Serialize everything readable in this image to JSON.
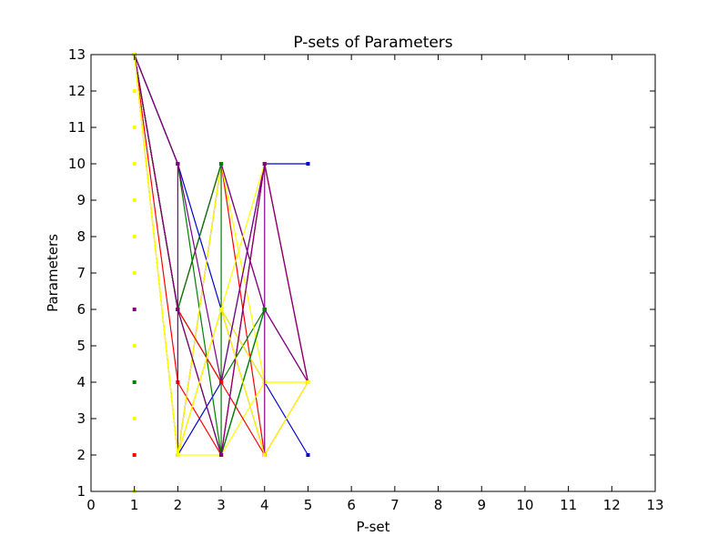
{
  "chart_data": {
    "type": "line",
    "title": "P-sets of Parameters",
    "xlabel": "P-set",
    "ylabel": "Parameters",
    "xlim": [
      0,
      13
    ],
    "ylim": [
      1,
      13
    ],
    "xticks": [
      0,
      1,
      2,
      3,
      4,
      5,
      6,
      7,
      8,
      9,
      10,
      11,
      12,
      13
    ],
    "yticks": [
      1,
      2,
      3,
      4,
      5,
      6,
      7,
      8,
      9,
      10,
      11,
      12,
      13
    ],
    "grid": false,
    "legend": "none",
    "series": [
      {
        "color": "#ff0000",
        "points": [
          [
            1,
            13
          ],
          [
            2,
            6
          ],
          [
            3,
            10
          ],
          [
            4,
            2
          ],
          [
            5,
            4
          ]
        ]
      },
      {
        "color": "#0000cc",
        "points": [
          [
            1,
            13
          ],
          [
            2,
            10
          ],
          [
            3,
            6
          ],
          [
            4,
            4
          ],
          [
            5,
            2
          ]
        ]
      },
      {
        "color": "#800080",
        "points": [
          [
            1,
            13
          ],
          [
            2,
            2
          ],
          [
            3,
            10
          ],
          [
            4,
            6
          ],
          [
            5,
            4
          ]
        ]
      },
      {
        "color": "#008000",
        "points": [
          [
            1,
            13
          ],
          [
            2,
            6
          ],
          [
            3,
            4
          ],
          [
            4,
            6
          ]
        ]
      },
      {
        "color": "#ff0000",
        "points": [
          [
            1,
            13
          ],
          [
            2,
            4
          ],
          [
            3,
            2
          ],
          [
            4,
            10
          ],
          [
            5,
            4
          ]
        ]
      },
      {
        "color": "#ffff00",
        "points": [
          [
            1,
            13
          ],
          [
            2,
            2
          ],
          [
            3,
            6
          ],
          [
            4,
            4
          ],
          [
            5,
            4
          ]
        ]
      },
      {
        "color": "#0000cc",
        "points": [
          [
            1,
            13
          ],
          [
            2,
            2
          ],
          [
            3,
            4
          ],
          [
            4,
            10
          ],
          [
            5,
            10
          ]
        ]
      },
      {
        "color": "#ff0000",
        "points": [
          [
            1,
            13
          ],
          [
            2,
            6
          ],
          [
            3,
            2
          ],
          [
            4,
            10
          ],
          [
            5,
            4
          ]
        ]
      },
      {
        "color": "#008000",
        "points": [
          [
            1,
            13
          ],
          [
            2,
            10
          ],
          [
            3,
            2
          ],
          [
            4,
            6
          ]
        ]
      },
      {
        "color": "#800080",
        "points": [
          [
            1,
            13
          ],
          [
            2,
            10
          ],
          [
            2,
            2
          ],
          [
            3,
            6
          ],
          [
            4,
            2
          ]
        ]
      },
      {
        "color": "#ffff00",
        "points": [
          [
            1,
            13
          ],
          [
            2,
            2
          ],
          [
            3,
            10
          ],
          [
            4,
            4
          ]
        ]
      },
      {
        "color": "#800080",
        "points": [
          [
            1,
            13
          ],
          [
            2,
            6
          ],
          [
            3,
            10
          ],
          [
            4,
            6
          ],
          [
            5,
            4
          ]
        ]
      },
      {
        "color": "#008000",
        "points": [
          [
            1,
            13
          ],
          [
            2,
            6
          ],
          [
            3,
            10
          ],
          [
            3,
            2
          ],
          [
            4,
            6
          ]
        ]
      },
      {
        "color": "#ffff00",
        "points": [
          [
            1,
            13
          ],
          [
            2,
            2
          ],
          [
            3,
            2
          ],
          [
            4,
            4
          ],
          [
            5,
            4
          ]
        ]
      },
      {
        "color": "#800080",
        "points": [
          [
            1,
            13
          ],
          [
            2,
            10
          ],
          [
            3,
            4
          ],
          [
            4,
            10
          ],
          [
            4,
            2
          ]
        ]
      },
      {
        "color": "#ff0000",
        "points": [
          [
            1,
            13
          ],
          [
            2,
            6
          ],
          [
            3,
            4
          ],
          [
            4,
            2
          ]
        ]
      },
      {
        "color": "#ffff00",
        "points": [
          [
            1,
            13
          ],
          [
            2,
            2
          ],
          [
            3,
            6
          ],
          [
            4,
            10
          ]
        ]
      },
      {
        "color": "#008000",
        "points": [
          [
            1,
            13
          ],
          [
            2,
            6
          ],
          [
            3,
            2
          ],
          [
            4,
            6
          ]
        ]
      },
      {
        "color": "#800080",
        "points": [
          [
            1,
            13
          ],
          [
            2,
            6
          ],
          [
            3,
            2
          ],
          [
            4,
            10
          ],
          [
            5,
            4
          ]
        ]
      },
      {
        "color": "#ffff00",
        "points": [
          [
            1,
            13
          ],
          [
            2,
            2
          ],
          [
            3,
            6
          ],
          [
            4,
            2
          ],
          [
            5,
            4
          ]
        ]
      }
    ],
    "markers_x1": [
      {
        "y": 12,
        "color": "#ffff00"
      },
      {
        "y": 11,
        "color": "#ffff00"
      },
      {
        "y": 10,
        "color": "#ffff00"
      },
      {
        "y": 9,
        "color": "#ffff00"
      },
      {
        "y": 8,
        "color": "#ffff00"
      },
      {
        "y": 7,
        "color": "#ffff00"
      },
      {
        "y": 6,
        "color": "#800080"
      },
      {
        "y": 5,
        "color": "#ffff00"
      },
      {
        "y": 4,
        "color": "#008000"
      },
      {
        "y": 3,
        "color": "#ffff00"
      },
      {
        "y": 2,
        "color": "#ff0000"
      },
      {
        "y": 1,
        "color": "#ffff00"
      }
    ]
  }
}
